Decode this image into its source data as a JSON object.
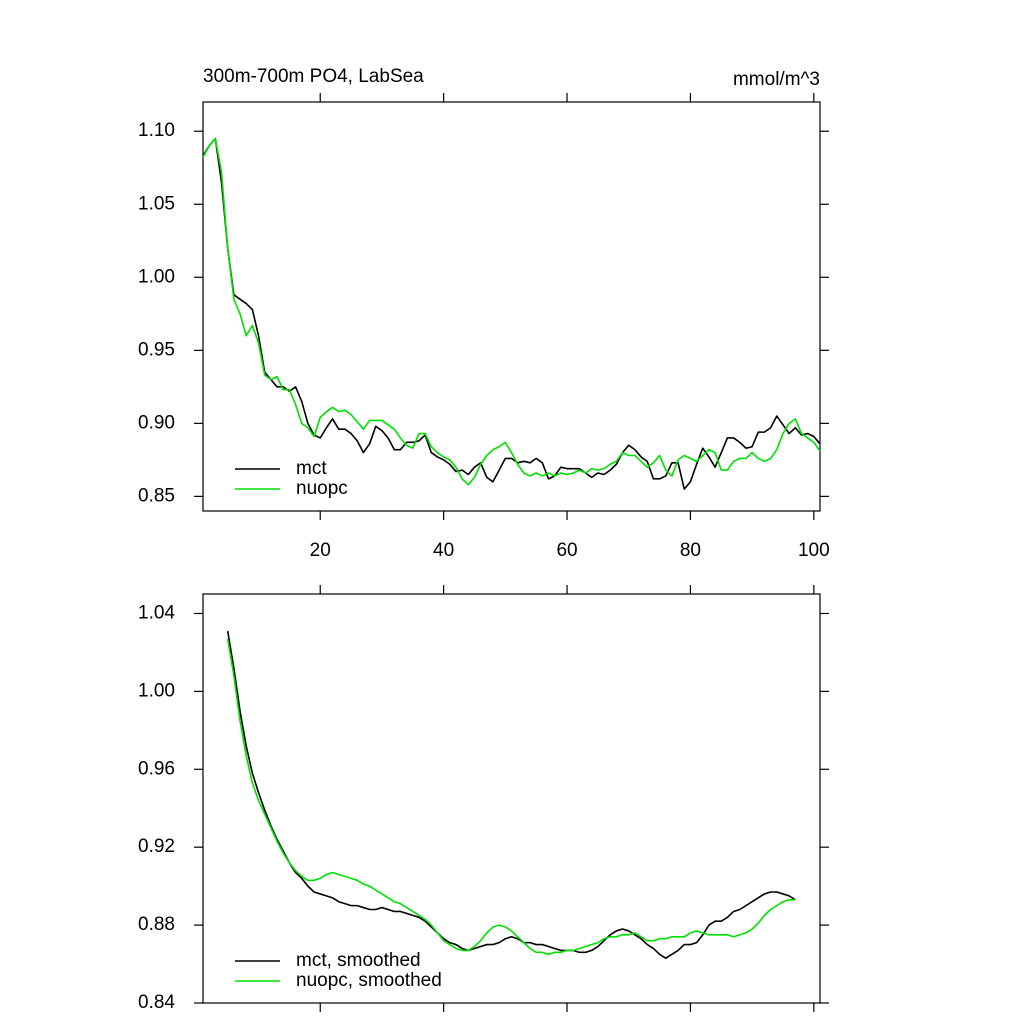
{
  "chart_data": [
    {
      "type": "line",
      "title": "300m-700m PO4, LabSea",
      "units_label": "mmol/m^3",
      "x": [
        1,
        2,
        3,
        4,
        5,
        6,
        7,
        8,
        9,
        10,
        11,
        12,
        13,
        14,
        15,
        16,
        17,
        18,
        19,
        20,
        21,
        22,
        23,
        24,
        25,
        26,
        27,
        28,
        29,
        30,
        31,
        32,
        33,
        34,
        35,
        36,
        37,
        38,
        39,
        40,
        41,
        42,
        43,
        44,
        45,
        46,
        47,
        48,
        49,
        50,
        51,
        52,
        53,
        54,
        55,
        56,
        57,
        58,
        59,
        60,
        61,
        62,
        63,
        64,
        65,
        66,
        67,
        68,
        69,
        70,
        71,
        72,
        73,
        74,
        75,
        76,
        77,
        78,
        79,
        80,
        81,
        82,
        83,
        84,
        85,
        86,
        87,
        88,
        89,
        90,
        91,
        92,
        93,
        94,
        95,
        96,
        97,
        98,
        99,
        100,
        101
      ],
      "series": [
        {
          "name": "mct",
          "color": "#000000",
          "values": [
            1.083,
            1.09,
            1.095,
            1.065,
            1.02,
            0.988,
            0.985,
            0.982,
            0.978,
            0.96,
            0.935,
            0.93,
            0.925,
            0.925,
            0.922,
            0.925,
            0.915,
            0.9,
            0.892,
            0.89,
            0.897,
            0.903,
            0.896,
            0.896,
            0.893,
            0.888,
            0.88,
            0.886,
            0.898,
            0.895,
            0.89,
            0.882,
            0.882,
            0.887,
            0.887,
            0.888,
            0.892,
            0.88,
            0.877,
            0.875,
            0.872,
            0.867,
            0.868,
            0.865,
            0.87,
            0.873,
            0.863,
            0.86,
            0.868,
            0.876,
            0.876,
            0.873,
            0.874,
            0.873,
            0.876,
            0.873,
            0.862,
            0.864,
            0.87,
            0.869,
            0.869,
            0.869,
            0.866,
            0.863,
            0.866,
            0.865,
            0.868,
            0.872,
            0.88,
            0.885,
            0.882,
            0.877,
            0.874,
            0.862,
            0.862,
            0.864,
            0.873,
            0.873,
            0.855,
            0.86,
            0.872,
            0.883,
            0.877,
            0.87,
            0.88,
            0.89,
            0.89,
            0.887,
            0.883,
            0.884,
            0.894,
            0.894,
            0.897,
            0.905,
            0.899,
            0.893,
            0.897,
            0.892,
            0.893,
            0.891,
            0.886
          ]
        },
        {
          "name": "nuopc",
          "color": "#00e000",
          "values": [
            1.082,
            1.09,
            1.095,
            1.072,
            1.02,
            0.985,
            0.975,
            0.96,
            0.967,
            0.955,
            0.933,
            0.93,
            0.932,
            0.923,
            0.923,
            0.913,
            0.9,
            0.897,
            0.891,
            0.904,
            0.908,
            0.911,
            0.908,
            0.909,
            0.906,
            0.901,
            0.896,
            0.902,
            0.902,
            0.902,
            0.899,
            0.896,
            0.89,
            0.885,
            0.883,
            0.893,
            0.893,
            0.884,
            0.88,
            0.877,
            0.875,
            0.87,
            0.862,
            0.858,
            0.863,
            0.872,
            0.878,
            0.882,
            0.884,
            0.887,
            0.88,
            0.872,
            0.866,
            0.864,
            0.866,
            0.864,
            0.866,
            0.864,
            0.866,
            0.865,
            0.866,
            0.868,
            0.866,
            0.869,
            0.868,
            0.869,
            0.872,
            0.874,
            0.88,
            0.878,
            0.878,
            0.874,
            0.87,
            0.873,
            0.878,
            0.868,
            0.864,
            0.875,
            0.878,
            0.876,
            0.874,
            0.878,
            0.882,
            0.88,
            0.868,
            0.868,
            0.874,
            0.876,
            0.876,
            0.88,
            0.876,
            0.874,
            0.876,
            0.882,
            0.893,
            0.9,
            0.903,
            0.893,
            0.89,
            0.887,
            0.881
          ]
        }
      ],
      "xlim": [
        1,
        101
      ],
      "xticks": [
        20,
        40,
        60,
        80,
        100
      ],
      "ylim": [
        0.84,
        1.12
      ],
      "yticks": [
        {
          "value": 1.1,
          "label": "1.10"
        },
        1.05,
        {
          "value": 1.0,
          "label": "1.00"
        },
        0.95,
        {
          "value": 0.9,
          "label": "0.90"
        },
        0.85
      ],
      "legend": "lower left"
    },
    {
      "type": "line",
      "x": [
        5,
        6,
        7,
        8,
        9,
        10,
        11,
        12,
        13,
        14,
        15,
        16,
        17,
        18,
        19,
        20,
        21,
        22,
        23,
        24,
        25,
        26,
        27,
        28,
        29,
        30,
        31,
        32,
        33,
        34,
        35,
        36,
        37,
        38,
        39,
        40,
        41,
        42,
        43,
        44,
        45,
        46,
        47,
        48,
        49,
        50,
        51,
        52,
        53,
        54,
        55,
        56,
        57,
        58,
        59,
        60,
        61,
        62,
        63,
        64,
        65,
        66,
        67,
        68,
        69,
        70,
        71,
        72,
        73,
        74,
        75,
        76,
        77,
        78,
        79,
        80,
        81,
        82,
        83,
        84,
        85,
        86,
        87,
        88,
        89,
        90,
        91,
        92,
        93,
        94,
        95,
        96,
        97
      ],
      "series": [
        {
          "name": "mct, smoothed",
          "color": "#000000",
          "values": [
            1.031,
            1.012,
            0.99,
            0.972,
            0.958,
            0.948,
            0.939,
            0.931,
            0.924,
            0.918,
            0.912,
            0.907,
            0.904,
            0.9,
            0.897,
            0.896,
            0.895,
            0.894,
            0.892,
            0.891,
            0.89,
            0.89,
            0.889,
            0.888,
            0.888,
            0.889,
            0.888,
            0.887,
            0.887,
            0.886,
            0.885,
            0.884,
            0.882,
            0.879,
            0.876,
            0.873,
            0.871,
            0.87,
            0.868,
            0.867,
            0.868,
            0.869,
            0.87,
            0.87,
            0.871,
            0.873,
            0.874,
            0.873,
            0.871,
            0.871,
            0.87,
            0.87,
            0.869,
            0.868,
            0.867,
            0.867,
            0.867,
            0.866,
            0.866,
            0.867,
            0.869,
            0.872,
            0.875,
            0.877,
            0.878,
            0.877,
            0.875,
            0.873,
            0.87,
            0.868,
            0.865,
            0.863,
            0.865,
            0.867,
            0.87,
            0.87,
            0.871,
            0.875,
            0.88,
            0.882,
            0.882,
            0.884,
            0.887,
            0.888,
            0.89,
            0.892,
            0.894,
            0.896,
            0.897,
            0.897,
            0.896,
            0.895,
            0.893
          ]
        },
        {
          "name": "nuopc, smoothed",
          "color": "#00e000",
          "values": [
            1.027,
            1.008,
            0.985,
            0.967,
            0.953,
            0.944,
            0.937,
            0.93,
            0.923,
            0.917,
            0.912,
            0.908,
            0.905,
            0.903,
            0.903,
            0.904,
            0.906,
            0.907,
            0.906,
            0.905,
            0.904,
            0.903,
            0.901,
            0.9,
            0.898,
            0.896,
            0.894,
            0.892,
            0.891,
            0.889,
            0.887,
            0.885,
            0.883,
            0.88,
            0.876,
            0.872,
            0.87,
            0.868,
            0.867,
            0.867,
            0.869,
            0.872,
            0.876,
            0.879,
            0.88,
            0.879,
            0.877,
            0.874,
            0.871,
            0.868,
            0.866,
            0.866,
            0.865,
            0.866,
            0.866,
            0.867,
            0.867,
            0.868,
            0.869,
            0.87,
            0.871,
            0.873,
            0.874,
            0.874,
            0.875,
            0.875,
            0.876,
            0.874,
            0.872,
            0.872,
            0.873,
            0.873,
            0.874,
            0.874,
            0.874,
            0.876,
            0.877,
            0.876,
            0.875,
            0.875,
            0.875,
            0.875,
            0.874,
            0.875,
            0.876,
            0.878,
            0.881,
            0.885,
            0.888,
            0.89,
            0.892,
            0.893,
            0.893
          ]
        }
      ],
      "xlim": [
        1,
        101
      ],
      "xticks": [
        20,
        40,
        60,
        80,
        100
      ],
      "ylim": [
        0.84,
        1.05
      ],
      "yticks": [
        1.04,
        {
          "value": 1.0,
          "label": "1.00"
        },
        0.96,
        0.92,
        0.88,
        0.84
      ],
      "legend": "lower left"
    }
  ]
}
